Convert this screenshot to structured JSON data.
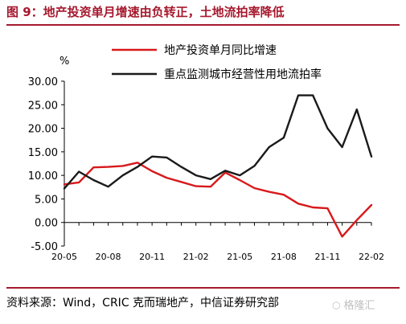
{
  "header": {
    "title": "图 9：地产投资单月增速由负转正，土地流拍率降低"
  },
  "footer": {
    "source": "资料来源：Wind，CRIC 克而瑞地产，中信证券研究部",
    "watermark": "格隆汇"
  },
  "colors": {
    "accent": "#a6192e",
    "series_red": "#d7191c",
    "series_black": "#1a1a1a"
  },
  "chart_data": {
    "type": "line",
    "unit": "%",
    "ylim": [
      -5,
      30
    ],
    "y_ticks": [
      "30.00",
      "25.00",
      "20.00",
      "15.00",
      "10.00",
      "5.00",
      "0.00",
      "-5.00"
    ],
    "y_tick_values": [
      30,
      25,
      20,
      15,
      10,
      5,
      0,
      -5
    ],
    "x_tick_labels": [
      "20-05",
      "20-08",
      "20-11",
      "21-02",
      "21-05",
      "21-08",
      "21-11",
      "22-02"
    ],
    "x": [
      "20-05",
      "20-06",
      "20-07",
      "20-08",
      "20-09",
      "20-10",
      "20-11",
      "20-12",
      "21-01",
      "21-02",
      "21-03",
      "21-04",
      "21-05",
      "21-06",
      "21-07",
      "21-08",
      "21-09",
      "21-10",
      "21-11",
      "21-12",
      "22-01",
      "22-02"
    ],
    "legend_position": "top",
    "grid": false,
    "series": [
      {
        "name": "地产投资单月同比增速",
        "color": "#d7191c",
        "values": [
          8.1,
          8.5,
          11.7,
          11.8,
          12.0,
          12.7,
          10.9,
          9.5,
          8.6,
          7.7,
          7.6,
          10.6,
          9.0,
          7.3,
          6.5,
          5.9,
          4.0,
          3.2,
          3.0,
          -3.0,
          0.5,
          3.7
        ]
      },
      {
        "name": "重点监测城市经营性用地流拍率",
        "color": "#1a1a1a",
        "values": [
          7.2,
          10.8,
          9.0,
          7.6,
          10.0,
          11.8,
          14.0,
          13.8,
          11.8,
          10.0,
          9.2,
          11.0,
          10.0,
          12.0,
          16.0,
          18.0,
          27.0,
          27.0,
          20.0,
          16.0,
          24.0,
          14.0
        ]
      }
    ]
  }
}
